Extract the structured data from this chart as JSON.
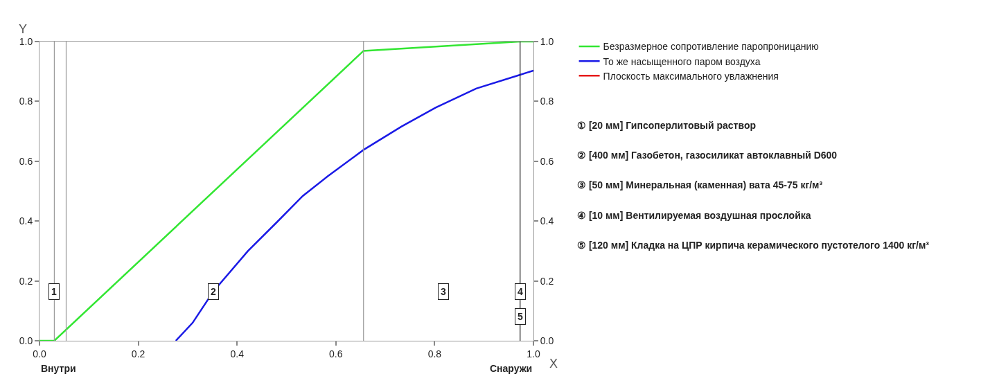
{
  "chart_data": {
    "type": "line",
    "xlabel": "X",
    "ylabel": "Y",
    "xlim": [
      0,
      1
    ],
    "xticks": [
      {
        "value": 0,
        "label": "0.0"
      },
      {
        "value": 0.2,
        "label": "0.2"
      },
      {
        "value": 0.4,
        "label": "0.4"
      },
      {
        "value": 0.6,
        "label": "0.6"
      },
      {
        "value": 0.8,
        "label": "0.8"
      },
      {
        "value": 1,
        "label": "1.0"
      }
    ],
    "ylim": [
      0,
      1
    ],
    "yticks": [
      {
        "value": 0,
        "label": "0.0"
      },
      {
        "value": 0.2,
        "label": "0.2"
      },
      {
        "value": 0.4,
        "label": "0.4"
      },
      {
        "value": 0.6,
        "label": "0.6"
      },
      {
        "value": 0.8,
        "label": "0.8"
      },
      {
        "value": 1,
        "label": "1.0"
      }
    ],
    "y2lim": [
      0,
      1
    ],
    "y2ticks": [
      {
        "value": 0,
        "label": "0.0"
      },
      {
        "value": 0.2,
        "label": "0.2"
      },
      {
        "value": 0.4,
        "label": "0.4"
      },
      {
        "value": 0.6,
        "label": "0.6"
      },
      {
        "value": 0.8,
        "label": "0.8"
      },
      {
        "value": 1,
        "label": "1.0"
      }
    ],
    "grid": false,
    "legend": "right",
    "marker": "none",
    "line_style": "solid",
    "series": [
      {
        "name": "Безразмерное сопротивление паропроницанию",
        "color": "#33e633",
        "x": [
          0,
          0.03,
          0.656,
          0.973,
          1
        ],
        "values": [
          0,
          0,
          0.969,
          1.0,
          1.0
        ]
      },
      {
        "name": "То же насыщенного паром воздуха",
        "color": "#1a1ae6",
        "x": [
          0.276,
          0.31,
          0.352,
          0.422,
          0.481,
          0.533,
          0.583,
          0.656,
          0.733,
          0.802,
          0.884,
          0.973,
          1.0
        ],
        "values": [
          0,
          0.06,
          0.165,
          0.3,
          0.397,
          0.484,
          0.549,
          0.638,
          0.716,
          0.779,
          0.843,
          0.889,
          0.903
        ]
      },
      {
        "name": "Плоскость максимального увлажнения",
        "color": "#e61a1a",
        "x": [
          null
        ],
        "values": [
          null
        ]
      }
    ],
    "ref_lines": [
      {
        "axis": "x",
        "value": 0.03,
        "color": "#999999"
      },
      {
        "axis": "x",
        "value": 0.054,
        "color": "#999999"
      },
      {
        "axis": "x",
        "value": 0.656,
        "color": "#999999"
      },
      {
        "axis": "x",
        "value": 0.973,
        "color": "#222222"
      }
    ],
    "annotations": [
      "Внутри",
      "Снаружи",
      "① [20 мм] Гипсоперлитовый раствор",
      "② [400 мм] Газобетон, газосиликат автоклавный D600",
      "③ [50 мм] Минеральная (каменная) вата 45-75 кг/м³",
      "④ [10 мм] Вентилируемая воздушная прослойка",
      "⑤ [120 мм] Кладка на ЦПР кирпича керамического пустотелого 1400 кг/м³",
      {
        "text": "1",
        "x": 0.03,
        "y": 0.165
      },
      {
        "text": "2",
        "x": 0.352,
        "y": 0.165
      },
      {
        "text": "3",
        "x": 0.818,
        "y": 0.165
      },
      {
        "text": "4",
        "x": 0.973,
        "y": 0.165
      },
      {
        "text": "5",
        "x": 0.973,
        "y": 0.08
      }
    ]
  }
}
